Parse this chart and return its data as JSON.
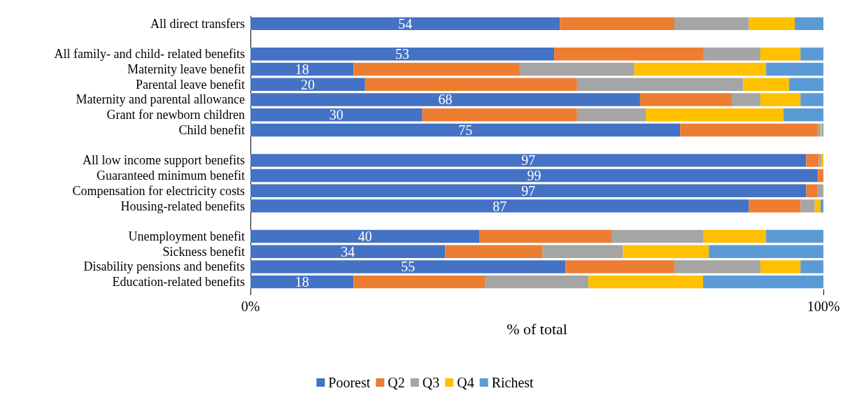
{
  "chart_data": {
    "type": "bar",
    "orientation": "horizontal",
    "stacked": true,
    "xlabel": "% of total",
    "xlim": [
      0,
      100
    ],
    "xticks": [
      {
        "value": 0,
        "label": "0%"
      },
      {
        "value": 100,
        "label": "100%"
      }
    ],
    "grid": false,
    "legend": "bottom",
    "categories": [
      "All direct transfers",
      null,
      "All family- and child- related benefits",
      "Maternity leave benefit",
      "Parental leave benefit",
      "Maternity and parental allowance",
      "Grant for newborn children",
      "Child benefit",
      null,
      "All low income support benefits",
      "Guaranteed minimum benefit",
      "Compensation for electricity costs",
      "Housing-related benefits",
      null,
      "Unemployment benefit",
      "Sickness benefit",
      "Disability pensions and benefits",
      "Education-related benefits"
    ],
    "series": [
      {
        "name": "Poorest",
        "color": "#4472c4",
        "values": [
          54,
          null,
          53,
          18,
          20,
          68,
          30,
          75,
          null,
          97,
          99,
          97,
          87,
          null,
          40,
          34,
          55,
          18
        ],
        "value_labels": [
          "54",
          null,
          "53",
          "18",
          "20",
          "68",
          "30",
          "75",
          null,
          "97",
          "99",
          "97",
          "87",
          null,
          "40",
          "34",
          "55",
          "18"
        ]
      },
      {
        "name": "Q2",
        "color": "#ed7d31",
        "values": [
          20,
          null,
          26,
          29,
          37,
          16,
          27,
          24,
          null,
          2.2,
          1,
          2,
          9,
          null,
          23,
          17,
          19,
          23
        ]
      },
      {
        "name": "Q3",
        "color": "#a5a5a5",
        "values": [
          13,
          null,
          10,
          20,
          29,
          5,
          12,
          0.5,
          null,
          0.5,
          0,
          1,
          2.5,
          null,
          16,
          14,
          15,
          18
        ]
      },
      {
        "name": "Q4",
        "color": "#ffc000",
        "values": [
          8,
          null,
          7,
          23,
          8,
          7,
          24,
          0.3,
          null,
          0.3,
          0,
          0,
          1,
          null,
          11,
          15,
          7,
          20
        ]
      },
      {
        "name": "Richest",
        "color": "#5b9bd5",
        "values": [
          5,
          null,
          4,
          10,
          6,
          4,
          7,
          0.2,
          null,
          0,
          0,
          0,
          0.5,
          null,
          10,
          20,
          4,
          21
        ]
      }
    ]
  }
}
